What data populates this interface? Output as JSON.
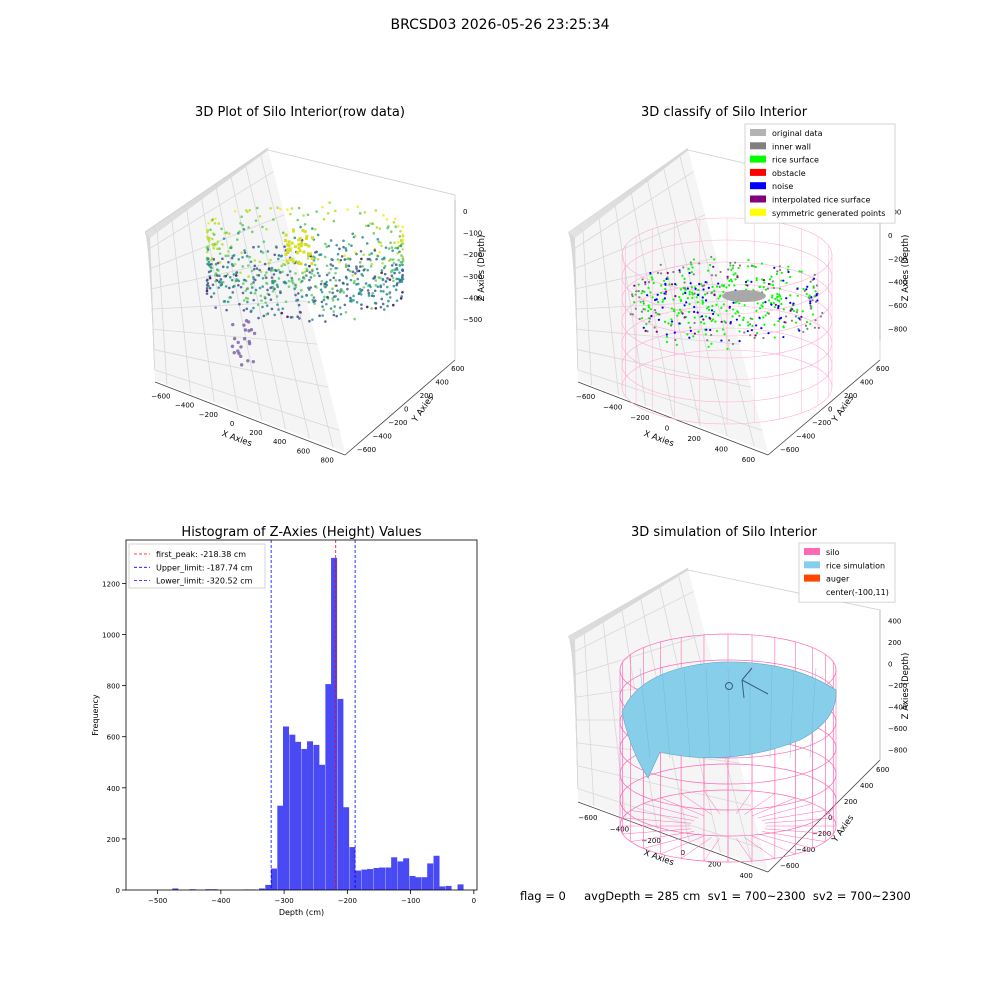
{
  "figure": {
    "suptitle": "BRCSD03 2026-05-26 23:25:34",
    "status_line": "flag = 0     avgDepth = 285 cm  sv1 = 700~2300  sv2 = 700~2300"
  },
  "chart_data": [
    {
      "type": "scatter3d",
      "title": "3D Plot of Silo Interior(row data)",
      "xlabel": "X Axies",
      "ylabel": "Y Axies",
      "zlabel": "Z Axies (Depth)",
      "x_ticks": [
        -600,
        -400,
        -200,
        0,
        200,
        400,
        600,
        800
      ],
      "y_ticks": [
        -600,
        -400,
        -200,
        0,
        200,
        400,
        600
      ],
      "z_ticks": [
        0,
        -100,
        -200,
        -300,
        -400,
        -500
      ],
      "colormap": "viridis"
    },
    {
      "type": "scatter3d",
      "title": "3D classify of Silo Interior",
      "xlabel": "X Axies",
      "ylabel": "Y Axies",
      "zlabel": "Z Axies (Depth)",
      "x_ticks": [
        -600,
        -400,
        -200,
        0,
        200,
        400,
        600
      ],
      "y_ticks": [
        -600,
        -400,
        -200,
        0,
        200,
        400,
        600
      ],
      "z_ticks": [
        200,
        0,
        -200,
        -400,
        -600,
        -800
      ],
      "legend_position": "top-right",
      "legend": [
        {
          "label": "original data",
          "color": "#b3b3b3"
        },
        {
          "label": "inner wall",
          "color": "#808080"
        },
        {
          "label": "rice surface",
          "color": "#00ff00"
        },
        {
          "label": "obstacle",
          "color": "#ff0000"
        },
        {
          "label": "noise",
          "color": "#0000ff"
        },
        {
          "label": "interpolated rice surface",
          "color": "#800080"
        },
        {
          "label": "symmetric generated points",
          "color": "#ffff00"
        }
      ]
    },
    {
      "type": "bar",
      "title": "Histogram of Z-Axies (Height) Values",
      "xlabel": "Depth (cm)",
      "ylabel": "Frequency",
      "xlim": [
        -550,
        5
      ],
      "ylim": [
        0,
        1370
      ],
      "x_ticks": [
        -500,
        -400,
        -300,
        -200,
        -100,
        0
      ],
      "y_ticks": [
        0,
        200,
        400,
        600,
        800,
        1000,
        1200
      ],
      "bar_color": "#4a4af5",
      "bin_width": 9.5,
      "bins": [
        {
          "x": -472,
          "y": 6
        },
        {
          "x": -445,
          "y": 3
        },
        {
          "x": -420,
          "y": 3
        },
        {
          "x": -410,
          "y": 3
        },
        {
          "x": -360,
          "y": 2
        },
        {
          "x": -350,
          "y": 2
        },
        {
          "x": -335,
          "y": 6
        },
        {
          "x": -325,
          "y": 20
        },
        {
          "x": -316,
          "y": 84
        },
        {
          "x": -306,
          "y": 330
        },
        {
          "x": -297,
          "y": 640
        },
        {
          "x": -287,
          "y": 608
        },
        {
          "x": -278,
          "y": 580
        },
        {
          "x": -268,
          "y": 552
        },
        {
          "x": -259,
          "y": 582
        },
        {
          "x": -249,
          "y": 568
        },
        {
          "x": -240,
          "y": 490
        },
        {
          "x": -230,
          "y": 806
        },
        {
          "x": -221,
          "y": 1300
        },
        {
          "x": -211,
          "y": 748
        },
        {
          "x": -202,
          "y": 324
        },
        {
          "x": -192,
          "y": 168
        },
        {
          "x": -183,
          "y": 76
        },
        {
          "x": -173,
          "y": 80
        },
        {
          "x": -164,
          "y": 82
        },
        {
          "x": -154,
          "y": 86
        },
        {
          "x": -145,
          "y": 88
        },
        {
          "x": -135,
          "y": 88
        },
        {
          "x": -126,
          "y": 128
        },
        {
          "x": -116,
          "y": 112
        },
        {
          "x": -107,
          "y": 124
        },
        {
          "x": -97,
          "y": 55
        },
        {
          "x": -88,
          "y": 50
        },
        {
          "x": -78,
          "y": 50
        },
        {
          "x": -69,
          "y": 104
        },
        {
          "x": -59,
          "y": 134
        },
        {
          "x": -50,
          "y": 14
        },
        {
          "x": -40,
          "y": 16
        },
        {
          "x": -21,
          "y": 22
        }
      ],
      "vlines": [
        {
          "label": "first_peak: -218.38 cm",
          "x": -218.38,
          "color": "#ff0000"
        },
        {
          "label": "Upper_limit: -187.74 cm",
          "x": -187.74,
          "color": "#0000ff"
        },
        {
          "label": "Lower_limit: -320.52 cm",
          "x": -320.52,
          "color": "#0000ff"
        }
      ],
      "legend_position": "top-left"
    },
    {
      "type": "surface3d",
      "title": "3D simulation of Silo Interior",
      "xlabel": "X Axies",
      "ylabel": "Y Axies",
      "zlabel": "Z Axies (Depth)",
      "x_ticks": [
        -600,
        -400,
        -200,
        0,
        200,
        400
      ],
      "y_ticks": [
        -600,
        -400,
        -200,
        0,
        200,
        400,
        600
      ],
      "z_ticks": [
        400,
        200,
        0,
        -200,
        -400,
        -600,
        -800
      ],
      "legend_position": "top-right",
      "legend": [
        {
          "label": "silo",
          "color": "#ff69b4"
        },
        {
          "label": "rice simulation",
          "color": "#87ceeb"
        },
        {
          "label": "auger",
          "color": "#ff4500"
        },
        {
          "label": "center(-100,11)",
          "color": "none"
        }
      ]
    }
  ]
}
